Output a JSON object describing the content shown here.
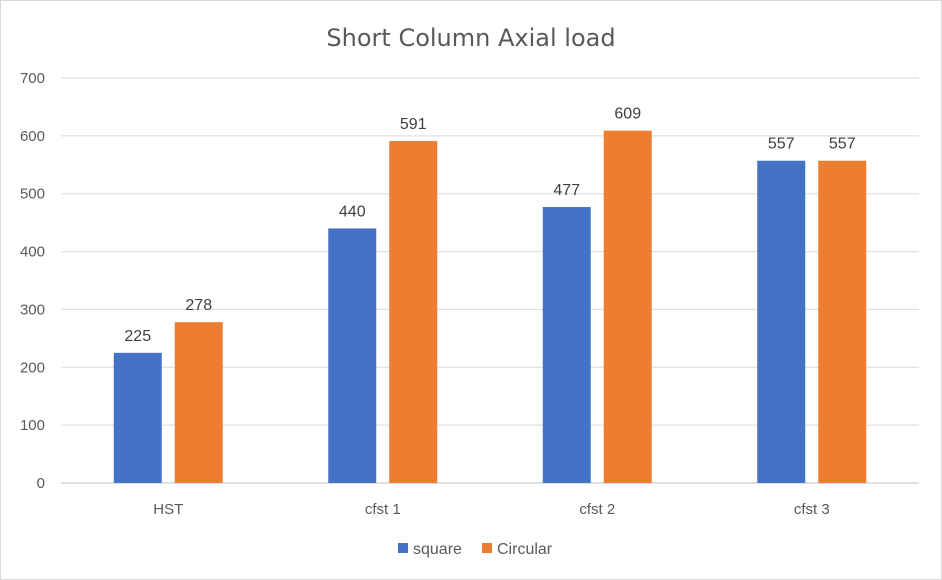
{
  "chart_data": {
    "type": "bar",
    "title": "Short Column Axial load",
    "categories": [
      "HST",
      "cfst 1",
      "cfst 2",
      "cfst 3"
    ],
    "series": [
      {
        "name": "square",
        "values": [
          225,
          440,
          477,
          557
        ],
        "color": "#4472C4"
      },
      {
        "name": "Circular",
        "values": [
          278,
          591,
          609,
          557
        ],
        "color": "#ED7D31"
      }
    ],
    "xlabel": "",
    "ylabel": "",
    "ylim": [
      0,
      700
    ],
    "yticks": [
      0,
      100,
      200,
      300,
      400,
      500,
      600,
      700
    ],
    "grid": true,
    "legend_position": "bottom",
    "colors": {
      "gridline": "#d9d9d9",
      "axis": "#bfbfbf"
    }
  }
}
